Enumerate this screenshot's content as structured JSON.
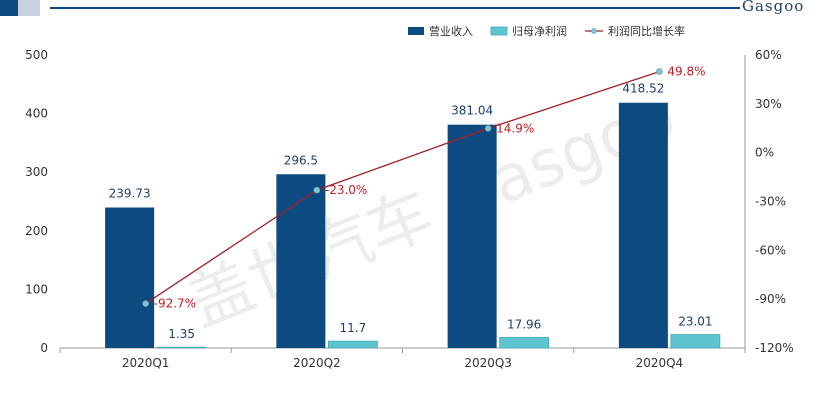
{
  "chart_data": {
    "type": "bar",
    "categories": [
      "2020Q1",
      "2020Q2",
      "2020Q3",
      "2020Q4"
    ],
    "series": [
      {
        "name": "营业收入",
        "kind": "bar",
        "axis": "left",
        "color": "#0c4a80",
        "values": [
          239.73,
          296.5,
          381.04,
          418.52
        ],
        "labels": [
          "239.73",
          "296.5",
          "381.04",
          "418.52"
        ]
      },
      {
        "name": "归母净利润",
        "kind": "bar",
        "axis": "left",
        "color": "#5ec4cf",
        "values": [
          1.35,
          11.7,
          17.96,
          23.01
        ],
        "labels": [
          "1.35",
          "11.7",
          "17.96",
          "23.01"
        ]
      },
      {
        "name": "利润同比增长率",
        "kind": "line",
        "axis": "right",
        "color": "#a31f24",
        "values": [
          -92.7,
          -23.0,
          14.9,
          49.8
        ],
        "labels": [
          "-92.7%",
          "-23.0%",
          "14.9%",
          "49.8%"
        ]
      }
    ],
    "ylim": [
      0,
      500
    ],
    "yticks": [
      0,
      100,
      200,
      300,
      400,
      500
    ],
    "ylim_right": [
      -120,
      60
    ],
    "yticks_right": [
      "-120%",
      "-90%",
      "-60%",
      "-30%",
      "0%",
      "30%",
      "60%"
    ],
    "legend_position": "top-right",
    "grid": false,
    "title": "",
    "xlabel": "",
    "ylabel": ""
  },
  "colors": {
    "accent": "#0c4a80",
    "rate_label": "#c01f26"
  },
  "logo_text": "Gasgoo",
  "watermark_text": "盖世汽车 Gasgoo"
}
